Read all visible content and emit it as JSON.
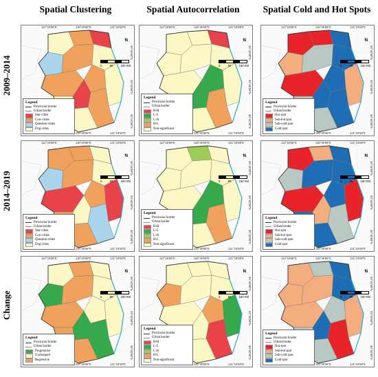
{
  "columns": [
    "Spatial Clustering",
    "Spatial Autocorrelation",
    "Spatial Cold and Hot Spots"
  ],
  "rows": [
    "2009–2014",
    "2014–2019",
    "Change"
  ],
  "graticule": {
    "top": [
      "112°19'58\"E",
      "116°49'58\"E",
      "121°19'58\"E"
    ],
    "right": [
      "36°40'58\"N",
      "33°40'58\"N",
      "30°40'58\"N"
    ]
  },
  "scalebar": {
    "labels": [
      "0",
      "80",
      "160 KM"
    ]
  },
  "north_label": "N",
  "legend_title": "Legend",
  "legend_lines": {
    "provincial": "Provincial border",
    "urban": "Urban border"
  },
  "legends": {
    "clustering": [
      {
        "label": "Star-cities",
        "color": "#e8434b"
      },
      {
        "label": "Cow-cities",
        "color": "#f0a25c"
      },
      {
        "label": "Question-cities",
        "color": "#a9d4ec"
      },
      {
        "label": "Dog-cities",
        "color": "#fcf8c6"
      }
    ],
    "autocorrelation": [
      {
        "label": "H-H",
        "color": "#e8434b"
      },
      {
        "label": "L-L",
        "color": "#35a94b"
      },
      {
        "label": "L-H",
        "color": "#9ccc5a"
      },
      {
        "label": "H-L",
        "color": "#f0a25c"
      },
      {
        "label": "Non-significant",
        "color": "#fcf8c6"
      }
    ],
    "hotspots": [
      {
        "label": "Hot spot",
        "color": "#e8242a"
      },
      {
        "label": "Sub-hot spot",
        "color": "#f4ad7e"
      },
      {
        "label": "Sub-cold spot",
        "color": "#b9c9c2"
      },
      {
        "label": "Cold spot",
        "color": "#1f6db5"
      }
    ],
    "change": [
      {
        "label": "Progressive",
        "color": "#35a94b"
      },
      {
        "label": "Unchanged",
        "color": "#fcf8c6"
      },
      {
        "label": "Regressive",
        "color": "#f0a25c"
      }
    ]
  },
  "colors": {
    "dog": "#fcf8c6",
    "cow": "#f0a25c",
    "star": "#e8434b",
    "question": "#a9d4ec",
    "hh": "#e8434b",
    "ll": "#35a94b",
    "lh": "#9ccc5a",
    "hl": "#f0a25c",
    "ns": "#fcf8c6",
    "hot": "#e8242a",
    "subhot": "#f4ad7e",
    "subcold": "#b9c9c2",
    "cold": "#1f6db5",
    "prog": "#35a94b",
    "unch": "#fcf8c6",
    "regr": "#f0a25c",
    "outside": "#f2f2f2",
    "border": "#777777",
    "coast": "#1fb4d4"
  },
  "panels": [
    {
      "legend": "clustering",
      "fill": [
        "dog",
        "cow",
        "star",
        "question",
        "cow",
        "dog",
        "cow",
        "cow",
        "star",
        "dog",
        "cow",
        "dog"
      ]
    },
    {
      "legend": "autocorrelation",
      "fill": [
        "ns",
        "ns",
        "hh",
        "ns",
        "ns",
        "ns",
        "ll",
        "ns",
        "ll",
        "ns",
        "hl",
        "ns"
      ]
    },
    {
      "legend": "hotspots",
      "fill": [
        "hot",
        "hot",
        "cold",
        "subhot",
        "subcold",
        "cold",
        "cold",
        "hot",
        "cold",
        "subhot",
        "cold",
        "subcold"
      ]
    },
    {
      "legend": "clustering",
      "fill": [
        "cow",
        "cow",
        "dog",
        "question",
        "cow",
        "dog",
        "cow",
        "star",
        "dog",
        "star",
        "question",
        "cow"
      ]
    },
    {
      "legend": "autocorrelation",
      "fill": [
        "ns",
        "lh",
        "ns",
        "ns",
        "ns",
        "ns",
        "ll",
        "ns",
        "ll",
        "ns",
        "hl",
        "ns"
      ]
    },
    {
      "legend": "hotspots",
      "fill": [
        "hot",
        "subhot",
        "cold",
        "subcold",
        "cold",
        "cold",
        "cold",
        "hot",
        "subhot",
        "hot",
        "subcold",
        "cold"
      ]
    },
    {
      "legend": "change",
      "fill": [
        "unch",
        "regr",
        "unch",
        "prog",
        "regr",
        "unch",
        "unch",
        "regr",
        "prog",
        "unch",
        "prog",
        "regr"
      ]
    },
    {
      "legend": "autocorrelation",
      "fill": [
        "ns",
        "ns",
        "ns",
        "hl",
        "ns",
        "ns",
        "hl",
        "ns",
        "ns",
        "ll",
        "hh",
        "ns"
      ]
    },
    {
      "legend": "hotspots",
      "fill": [
        "subhot",
        "subcold",
        "cold",
        "subhot",
        "subhot",
        "cold",
        "subcold",
        "subhot",
        "cold",
        "subhot",
        "hot",
        "subcold"
      ]
    }
  ]
}
